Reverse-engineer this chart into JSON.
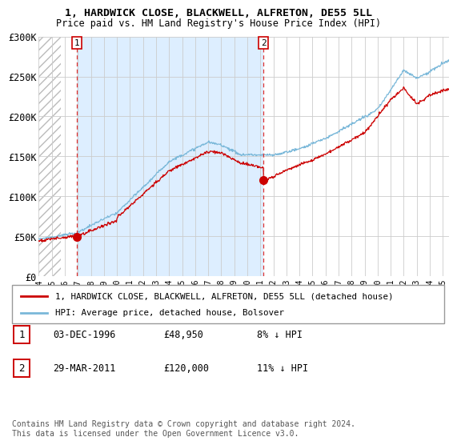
{
  "title_line1": "1, HARDWICK CLOSE, BLACKWELL, ALFRETON, DE55 5LL",
  "title_line2": "Price paid vs. HM Land Registry's House Price Index (HPI)",
  "x_start_year": 1994,
  "x_end_year": 2025,
  "ylim": [
    0,
    300000
  ],
  "yticks": [
    0,
    50000,
    100000,
    150000,
    200000,
    250000,
    300000
  ],
  "ytick_labels": [
    "£0",
    "£50K",
    "£100K",
    "£150K",
    "£200K",
    "£250K",
    "£300K"
  ],
  "hpi_color": "#7ab8d9",
  "price_color": "#cc0000",
  "sale1_year": 1996.92,
  "sale1_price": 48950,
  "sale2_year": 2011.25,
  "sale2_price": 120000,
  "legend_label1": "1, HARDWICK CLOSE, BLACKWELL, ALFRETON, DE55 5LL (detached house)",
  "legend_label2": "HPI: Average price, detached house, Bolsover",
  "table_row1_num": "1",
  "table_row1_date": "03-DEC-1996",
  "table_row1_price": "£48,950",
  "table_row1_hpi": "8% ↓ HPI",
  "table_row2_num": "2",
  "table_row2_date": "29-MAR-2011",
  "table_row2_price": "£120,000",
  "table_row2_hpi": "11% ↓ HPI",
  "footer": "Contains HM Land Registry data © Crown copyright and database right 2024.\nThis data is licensed under the Open Government Licence v3.0.",
  "annotation1_label": "1",
  "annotation2_label": "2",
  "vline1_year": 1996.92,
  "vline2_year": 2011.25,
  "shade_color": "#ddeeff",
  "grid_color": "#cccccc",
  "hatch_color": "#aaaaaa"
}
